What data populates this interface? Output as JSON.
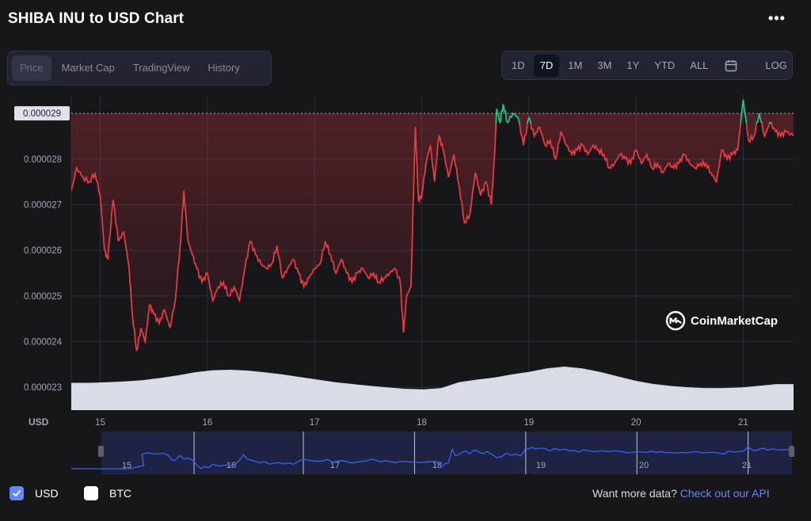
{
  "header": {
    "title": "SHIBA INU to USD Chart",
    "more_label": "•••"
  },
  "tabs": [
    {
      "label": "Price",
      "active": true
    },
    {
      "label": "Market Cap",
      "active": false
    },
    {
      "label": "TradingView",
      "active": false
    },
    {
      "label": "History",
      "active": false
    }
  ],
  "ranges": [
    {
      "label": "1D",
      "active": false
    },
    {
      "label": "7D",
      "active": true
    },
    {
      "label": "1M",
      "active": false
    },
    {
      "label": "3M",
      "active": false
    },
    {
      "label": "1Y",
      "active": false
    },
    {
      "label": "YTD",
      "active": false
    },
    {
      "label": "ALL",
      "active": false
    }
  ],
  "log_label": "LOG",
  "watermark": "CoinMarketCap",
  "legend": {
    "usd_label": "USD",
    "btc_label": "BTC"
  },
  "more_data": {
    "text": "Want more data?",
    "link": "Check out our API"
  },
  "colors": {
    "down": "#ea3943",
    "up": "#16c784",
    "volume": "#d8dce6",
    "navigator": "#3861fb"
  },
  "chart_data": {
    "type": "line",
    "ylabel": "USD",
    "y_ticks": [
      "0.000023",
      "0.000024",
      "0.000025",
      "0.000026",
      "0.000027",
      "0.000028"
    ],
    "y_values": [
      2.3e-05,
      2.4e-05,
      2.5e-05,
      2.6e-05,
      2.7e-05,
      2.8e-05
    ],
    "ylim": [
      2.25e-05,
      2.94e-05
    ],
    "xlim": [
      14.73,
      21.47
    ],
    "x_ticks": [
      "15",
      "16",
      "17",
      "18",
      "19",
      "20",
      "21"
    ],
    "x_tick_values": [
      15,
      16,
      17,
      18,
      19,
      20,
      21
    ],
    "baseline_price": 2.9e-05,
    "baseline_label": "0.000029",
    "series": [
      {
        "x": [
          14.73,
          14.78,
          14.84,
          14.9,
          14.95,
          15.0,
          15.04,
          15.07,
          15.12,
          15.17,
          15.22,
          15.27,
          15.3,
          15.34,
          15.38,
          15.42,
          15.46,
          15.5,
          15.55,
          15.6,
          15.65,
          15.7,
          15.75,
          15.78,
          15.82,
          15.86,
          15.9,
          15.95,
          16.0,
          16.05,
          16.1,
          16.15,
          16.2,
          16.25,
          16.3,
          16.35,
          16.4,
          16.45,
          16.5,
          16.55,
          16.6,
          16.65,
          16.7,
          16.75,
          16.8,
          16.85,
          16.9,
          16.95,
          17.0,
          17.05,
          17.1,
          17.15,
          17.2,
          17.25,
          17.3,
          17.35,
          17.4,
          17.45,
          17.5,
          17.55,
          17.6,
          17.65,
          17.7,
          17.75,
          17.8,
          17.83,
          17.86,
          17.9,
          17.94,
          17.97,
          18.0,
          18.04,
          18.08,
          18.12,
          18.16,
          18.2,
          18.25,
          18.3,
          18.35,
          18.4,
          18.45,
          18.5,
          18.55,
          18.6,
          18.65,
          18.68,
          18.7,
          18.73,
          18.76,
          18.8,
          18.85,
          18.9,
          18.95,
          19.0,
          19.05,
          19.1,
          19.15,
          19.2,
          19.25,
          19.3,
          19.35,
          19.4,
          19.45,
          19.5,
          19.55,
          19.6,
          19.65,
          19.7,
          19.75,
          19.8,
          19.85,
          19.9,
          19.95,
          20.0,
          20.05,
          20.1,
          20.15,
          20.2,
          20.25,
          20.3,
          20.35,
          20.4,
          20.45,
          20.5,
          20.55,
          20.6,
          20.65,
          20.7,
          20.75,
          20.8,
          20.85,
          20.9,
          20.95,
          21.0,
          21.05,
          21.1,
          21.15,
          21.2,
          21.25,
          21.3,
          21.35,
          21.4,
          21.47
        ],
        "y": [
          2.73e-05,
          2.78e-05,
          2.76e-05,
          2.75e-05,
          2.77e-05,
          2.72e-05,
          2.6e-05,
          2.58e-05,
          2.71e-05,
          2.62e-05,
          2.64e-05,
          2.56e-05,
          2.46e-05,
          2.38e-05,
          2.43e-05,
          2.4e-05,
          2.48e-05,
          2.46e-05,
          2.44e-05,
          2.47e-05,
          2.43e-05,
          2.49e-05,
          2.62e-05,
          2.73e-05,
          2.62e-05,
          2.59e-05,
          2.56e-05,
          2.53e-05,
          2.55e-05,
          2.49e-05,
          2.52e-05,
          2.53e-05,
          2.5e-05,
          2.52e-05,
          2.49e-05,
          2.56e-05,
          2.62e-05,
          2.59e-05,
          2.57e-05,
          2.56e-05,
          2.57e-05,
          2.61e-05,
          2.54e-05,
          2.56e-05,
          2.58e-05,
          2.55e-05,
          2.52e-05,
          2.54e-05,
          2.56e-05,
          2.57e-05,
          2.62e-05,
          2.59e-05,
          2.55e-05,
          2.58e-05,
          2.55e-05,
          2.53e-05,
          2.55e-05,
          2.56e-05,
          2.54e-05,
          2.55e-05,
          2.53e-05,
          2.54e-05,
          2.55e-05,
          2.56e-05,
          2.53e-05,
          2.42e-05,
          2.5e-05,
          2.52e-05,
          2.87e-05,
          2.71e-05,
          2.72e-05,
          2.79e-05,
          2.83e-05,
          2.75e-05,
          2.85e-05,
          2.82e-05,
          2.76e-05,
          2.81e-05,
          2.74e-05,
          2.66e-05,
          2.68e-05,
          2.77e-05,
          2.72e-05,
          2.75e-05,
          2.7e-05,
          2.81e-05,
          2.91e-05,
          2.88e-05,
          2.92e-05,
          2.88e-05,
          2.9e-05,
          2.89e-05,
          2.83e-05,
          2.89e-05,
          2.85e-05,
          2.87e-05,
          2.83e-05,
          2.84e-05,
          2.8e-05,
          2.86e-05,
          2.83e-05,
          2.81e-05,
          2.82e-05,
          2.83e-05,
          2.81e-05,
          2.83e-05,
          2.82e-05,
          2.81e-05,
          2.78e-05,
          2.79e-05,
          2.81e-05,
          2.8e-05,
          2.79e-05,
          2.82e-05,
          2.79e-05,
          2.81e-05,
          2.78e-05,
          2.79e-05,
          2.77e-05,
          2.79e-05,
          2.78e-05,
          2.79e-05,
          2.81e-05,
          2.79e-05,
          2.78e-05,
          2.79e-05,
          2.79e-05,
          2.77e-05,
          2.75e-05,
          2.82e-05,
          2.8e-05,
          2.81e-05,
          2.82e-05,
          2.93e-05,
          2.84e-05,
          2.85e-05,
          2.9e-05,
          2.85e-05,
          2.88e-05,
          2.86e-05,
          2.85e-05,
          2.86e-05,
          2.85e-05
        ]
      }
    ],
    "volume_profile": [
      0.5,
      0.5,
      0.52,
      0.55,
      0.6,
      0.68,
      0.78,
      0.9,
      0.98,
      1.0,
      0.97,
      0.9,
      0.82,
      0.72,
      0.62,
      0.52,
      0.45,
      0.38,
      0.32,
      0.27,
      0.25,
      0.3,
      0.52,
      0.62,
      0.7,
      0.82,
      0.92,
      1.05,
      1.12,
      1.05,
      0.92,
      0.75,
      0.58,
      0.46,
      0.38,
      0.33,
      0.3,
      0.3,
      0.32,
      0.38,
      0.45,
      0.45
    ],
    "nav_x_ticks": [
      "15",
      "16",
      "17",
      "18",
      "19",
      "20",
      "21"
    ]
  }
}
